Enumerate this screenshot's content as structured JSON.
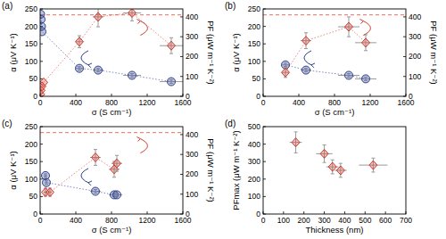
{
  "chart_data": [
    {
      "type": "scatter",
      "title": "(a)",
      "x_label": "σ (S cm⁻¹)",
      "y_label": "α (μV K⁻¹)",
      "y2_label": "PF (μW m⁻¹ K⁻²)",
      "xlim": [
        0,
        1600
      ],
      "xticks": [
        0,
        400,
        800,
        1200,
        1600
      ],
      "ylim": [
        0,
        250
      ],
      "yticks": [
        0,
        50,
        100,
        150,
        200,
        250
      ],
      "y2lim": [
        0,
        440
      ],
      "y2ticks": [
        0,
        100,
        200,
        300,
        400
      ],
      "reference": {
        "value": 410,
        "axis": "y2",
        "color": "#e8705f",
        "line_style": "dashed"
      },
      "series": [
        {
          "name": "α",
          "axis": "y",
          "color": "#2b3f91",
          "marker": "circle",
          "line_style": "dotted",
          "x": [
            5,
            10,
            15,
            20,
            440,
            650,
            1030,
            1470
          ],
          "values": [
            235,
            220,
            200,
            185,
            80,
            75,
            60,
            42
          ],
          "xerr": [
            0,
            0,
            0,
            0,
            40,
            60,
            100,
            130
          ],
          "yerr": [
            0,
            0,
            0,
            0,
            5,
            5,
            5,
            5
          ]
        },
        {
          "name": "PF",
          "axis": "y2",
          "color": "#d0392b",
          "marker": "diamond",
          "line_style": "dotted",
          "x": [
            5,
            10,
            20,
            40,
            440,
            650,
            1030,
            1470
          ],
          "values": [
            10,
            30,
            50,
            70,
            275,
            400,
            420,
            255
          ],
          "xerr": [
            0,
            0,
            0,
            0,
            40,
            60,
            100,
            130
          ],
          "yerr": [
            0,
            0,
            0,
            0,
            30,
            50,
            40,
            40
          ]
        }
      ]
    },
    {
      "type": "scatter",
      "title": "(b)",
      "x_label": "σ (S cm⁻¹)",
      "y_label": "α (μV K⁻¹)",
      "y2_label": "PF (μW m⁻¹ K⁻²)",
      "xlim": [
        0,
        1600
      ],
      "xticks": [
        0,
        400,
        800,
        1200,
        1600
      ],
      "ylim": [
        0,
        250
      ],
      "yticks": [
        0,
        50,
        100,
        150,
        200,
        250
      ],
      "y2lim": [
        0,
        440
      ],
      "y2ticks": [
        0,
        100,
        200,
        300,
        400
      ],
      "reference": {
        "value": 410,
        "axis": "y2",
        "color": "#e8705f",
        "line_style": "dashed"
      },
      "series": [
        {
          "name": "α",
          "axis": "y",
          "color": "#2b3f91",
          "marker": "circle",
          "line_style": "dotted",
          "x": [
            250,
            480,
            960,
            1150
          ],
          "values": [
            90,
            75,
            60,
            50
          ],
          "xerr": [
            40,
            60,
            120,
            120
          ],
          "yerr": [
            5,
            5,
            5,
            5
          ]
        },
        {
          "name": "PF",
          "axis": "y2",
          "color": "#d0392b",
          "marker": "diamond",
          "line_style": "dotted",
          "x": [
            250,
            480,
            960,
            1150
          ],
          "values": [
            120,
            280,
            350,
            270
          ],
          "xerr": [
            40,
            60,
            120,
            120
          ],
          "yerr": [
            25,
            40,
            50,
            40
          ]
        }
      ]
    },
    {
      "type": "scatter",
      "title": "(c)",
      "x_label": "σ (S cm⁻¹)",
      "y_label": "α (μV K⁻¹)",
      "y2_label": "PF (μW m⁻¹ K⁻²)",
      "xlim": [
        0,
        1600
      ],
      "xticks": [
        0,
        400,
        800,
        1200,
        1600
      ],
      "ylim": [
        0,
        250
      ],
      "yticks": [
        0,
        50,
        100,
        150,
        200,
        250
      ],
      "y2lim": [
        0,
        440
      ],
      "y2ticks": [
        0,
        100,
        200,
        300,
        400
      ],
      "reference": {
        "value": 410,
        "axis": "y2",
        "color": "#e8705f",
        "line_style": "dashed"
      },
      "series": [
        {
          "name": "α",
          "axis": "y",
          "color": "#2b3f91",
          "marker": "circle",
          "line_style": "dotted",
          "x": [
            60,
            70,
            620,
            830,
            860
          ],
          "values": [
            110,
            90,
            65,
            55,
            55
          ],
          "xerr": [
            20,
            20,
            60,
            60,
            60
          ],
          "yerr": [
            5,
            5,
            5,
            5,
            5
          ]
        },
        {
          "name": "PF",
          "axis": "y2",
          "color": "#d0392b",
          "marker": "diamond",
          "line_style": "dotted",
          "x": [
            60,
            110,
            620,
            830,
            860
          ],
          "values": [
            110,
            110,
            285,
            225,
            255
          ],
          "xerr": [
            20,
            20,
            60,
            60,
            60
          ],
          "yerr": [
            20,
            20,
            40,
            40,
            40
          ]
        }
      ]
    },
    {
      "type": "scatter",
      "title": "(d)",
      "x_label": "Thickness (nm)",
      "y_label": "PFmax (μW m⁻¹ K⁻²)",
      "xlim": [
        0,
        700
      ],
      "xticks": [
        0,
        100,
        200,
        300,
        400,
        500,
        600,
        700
      ],
      "ylim": [
        0,
        500
      ],
      "yticks": [
        0,
        100,
        200,
        300,
        400,
        500
      ],
      "series": [
        {
          "name": "PFmax",
          "axis": "y",
          "color": "#d0392b",
          "marker": "diamond",
          "line_style": "none",
          "x": [
            160,
            300,
            340,
            380,
            540
          ],
          "values": [
            410,
            345,
            270,
            250,
            280
          ],
          "xerr": [
            30,
            40,
            30,
            30,
            70
          ],
          "yerr": [
            60,
            50,
            40,
            40,
            40
          ]
        }
      ]
    }
  ]
}
